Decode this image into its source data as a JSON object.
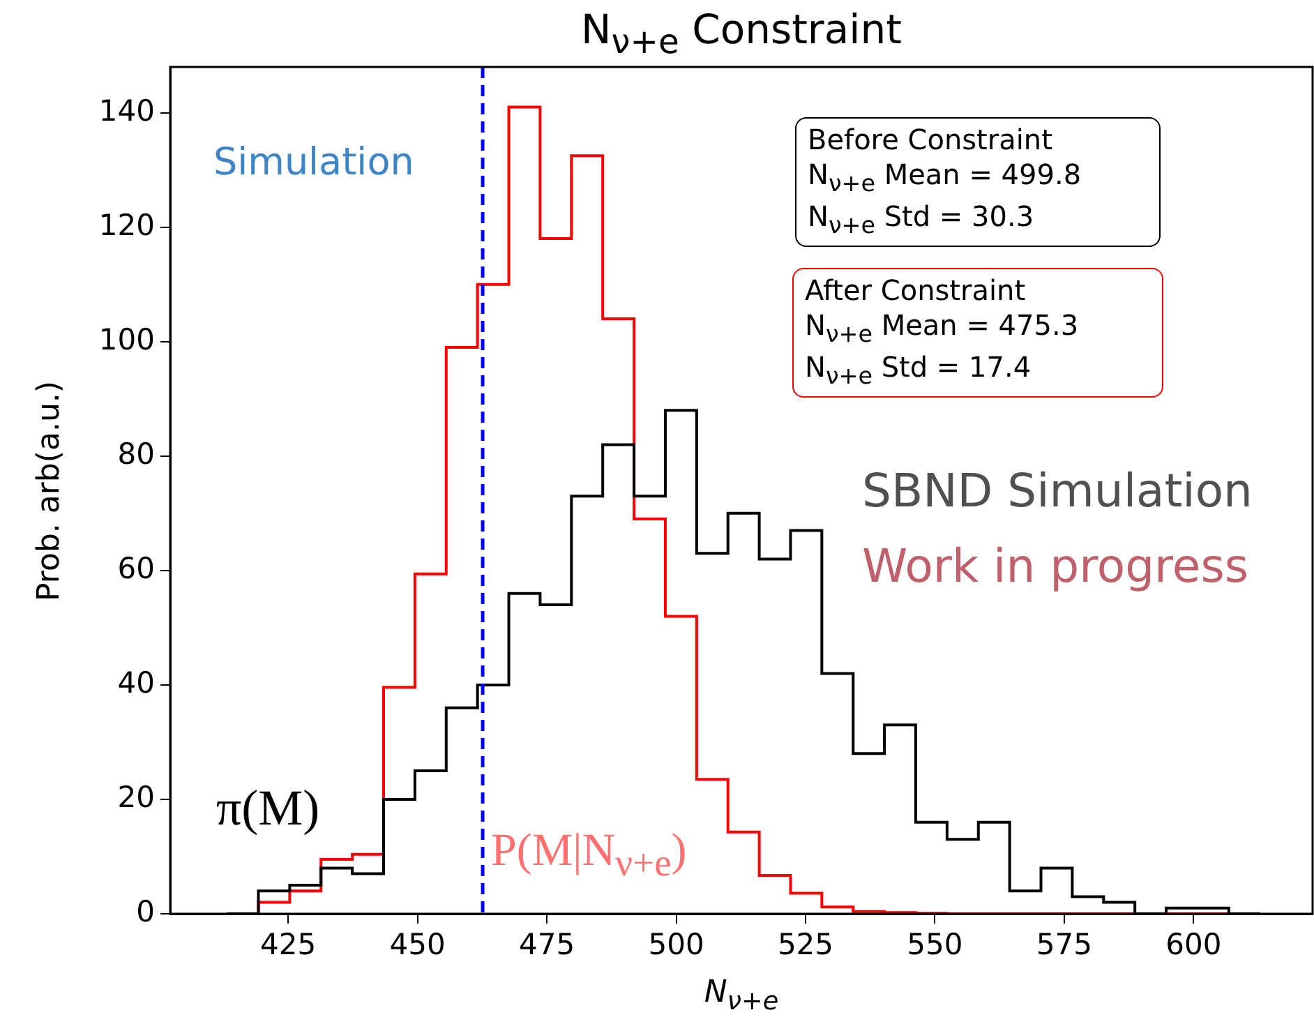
{
  "chart_data": {
    "type": "histogram",
    "title": "N$_{ν+e}$ Constraint",
    "xlabel": "N$_{ν+e}$",
    "ylabel": "Prob. arb(a.u.)",
    "bins": [
      413.2,
      419.25,
      425.3,
      431.35,
      437.4,
      443.45,
      449.5,
      455.55,
      461.6,
      467.65,
      473.7,
      479.75,
      485.8,
      491.85,
      497.9,
      503.95,
      510,
      516.05,
      522.1,
      528.15,
      534.2,
      540.25,
      546.3,
      552.35,
      558.4,
      564.45,
      570.5,
      576.55,
      582.6,
      588.65,
      594.7,
      600.75,
      606.8,
      612.85
    ],
    "series": [
      {
        "name": "π(M)",
        "color": "#000000",
        "values": [
          0,
          4,
          5,
          8,
          7,
          20,
          25,
          36,
          40,
          56,
          54,
          73,
          82,
          73,
          88,
          63,
          70,
          62,
          67,
          42,
          28,
          33,
          16,
          13,
          16,
          4,
          8,
          3,
          2,
          0,
          1,
          1,
          0
        ]
      },
      {
        "name": "P(M|N$_{ν+e}$)",
        "color": "#ff0000",
        "values": [
          0,
          2,
          4,
          9.5,
          10.4,
          39.6,
          59.4,
          99,
          110,
          141,
          118,
          132.5,
          104,
          69,
          52,
          23.5,
          14.3,
          6.7,
          3.6,
          1.2,
          0.4,
          0.2,
          0.1,
          0,
          0,
          0,
          0,
          0,
          0,
          0,
          0,
          0,
          0
        ]
      }
    ],
    "xlim": [
      402.2,
      623
    ],
    "xticks": [
      425,
      450,
      475,
      500,
      525,
      550,
      575,
      600
    ],
    "ylim": [
      0,
      148
    ],
    "yticks": [
      0,
      20,
      40,
      60,
      80,
      100,
      120,
      140
    ],
    "ref_lines": [
      {
        "axis": "x",
        "value": 462.6,
        "color": "#0000ff",
        "line_style": "dashed"
      }
    ],
    "annotations": [
      "Simulation",
      "Before Constraint\nN$_{ν+e}$ Mean = 499.8\nN$_{ν+e}$ Std = 30.3",
      "After Constraint\nN$_{ν+e}$ Mean = 475.3\nN$_{ν+e}$ Std = 17.4",
      "SBND Simulation",
      "Work in progress"
    ],
    "grid": false,
    "legend": false
  }
}
